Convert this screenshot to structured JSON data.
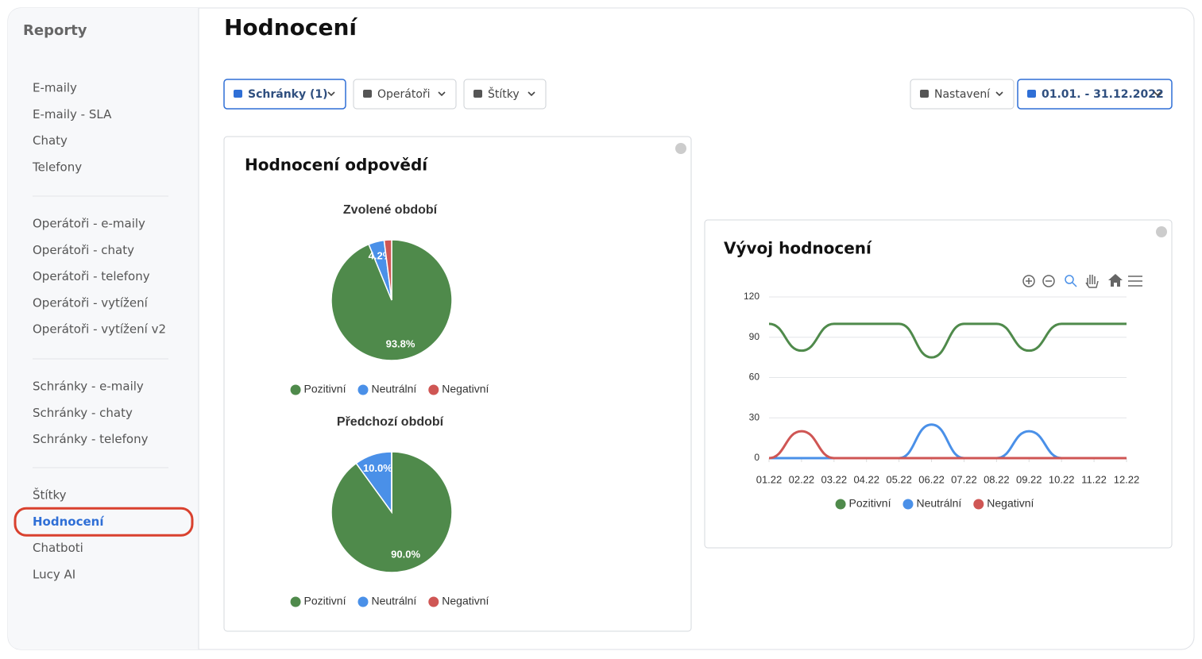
{
  "sidebar": {
    "title": "Reporty",
    "groups": [
      [
        "E-maily",
        "E-maily - SLA",
        "Chaty",
        "Telefony"
      ],
      [
        "Operátoři - e-maily",
        "Operátoři - chaty",
        "Operátoři - telefony",
        "Operátoři - vytížení",
        "Operátoři - vytížení v2"
      ],
      [
        "Schránky - e-maily",
        "Schránky - chaty",
        "Schránky - telefony"
      ],
      [
        "Štítky",
        "Hodnocení",
        "Chatboti",
        "Lucy AI"
      ]
    ],
    "active": {
      "group": 3,
      "item": 1
    }
  },
  "header": {
    "title": "Hodnocení"
  },
  "filters": {
    "left": [
      "Schránky (1)",
      "Operátoři",
      "Štítky"
    ],
    "right": [
      "Nastavení",
      "01.01. - 31.12.2022"
    ]
  },
  "panels": {
    "responses": {
      "title": "Hodnocení odpovědí"
    },
    "trend": {
      "title": "Vývoj hodnocení"
    }
  },
  "chart_data": [
    {
      "type": "pie",
      "title": "Zvolené období",
      "categories": [
        "Pozitivní",
        "Neutrální",
        "Negativní"
      ],
      "colors": [
        "#4f8a4b",
        "#4a90e8",
        "#cf5654"
      ],
      "values": [
        93.8,
        4.2,
        2.0
      ],
      "value_labels": [
        "93.8%",
        "4.2%",
        null
      ],
      "legend": "bottom"
    },
    {
      "type": "pie",
      "title": "Předchozí období",
      "categories": [
        "Pozitivní",
        "Neutrální",
        "Negativní"
      ],
      "colors": [
        "#4f8a4b",
        "#4a90e8",
        "#cf5654"
      ],
      "values": [
        90.0,
        10.0,
        0
      ],
      "value_labels": [
        "90.0%",
        "10.0%",
        null
      ],
      "legend": "bottom"
    },
    {
      "type": "line",
      "categories": [
        "01.22",
        "02.22",
        "03.22",
        "04.22",
        "05.22",
        "06.22",
        "07.22",
        "08.22",
        "09.22",
        "10.22",
        "11.22",
        "12.22"
      ],
      "series": [
        {
          "name": "Pozitivní",
          "color": "#4f8a4b",
          "values": [
            100,
            80,
            100,
            100,
            100,
            75,
            100,
            100,
            80,
            100,
            100,
            100
          ]
        },
        {
          "name": "Neutrální",
          "color": "#4a90e8",
          "values": [
            0,
            0,
            0,
            0,
            0,
            25,
            0,
            0,
            20,
            0,
            0,
            0
          ]
        },
        {
          "name": "Negativní",
          "color": "#cf5654",
          "values": [
            0,
            20,
            0,
            0,
            0,
            0,
            0,
            0,
            0,
            0,
            0,
            0
          ]
        }
      ],
      "ylim": [
        0,
        120
      ],
      "yticks": [
        0,
        30,
        60,
        90,
        120
      ],
      "grid": true,
      "legend": "bottom"
    }
  ]
}
